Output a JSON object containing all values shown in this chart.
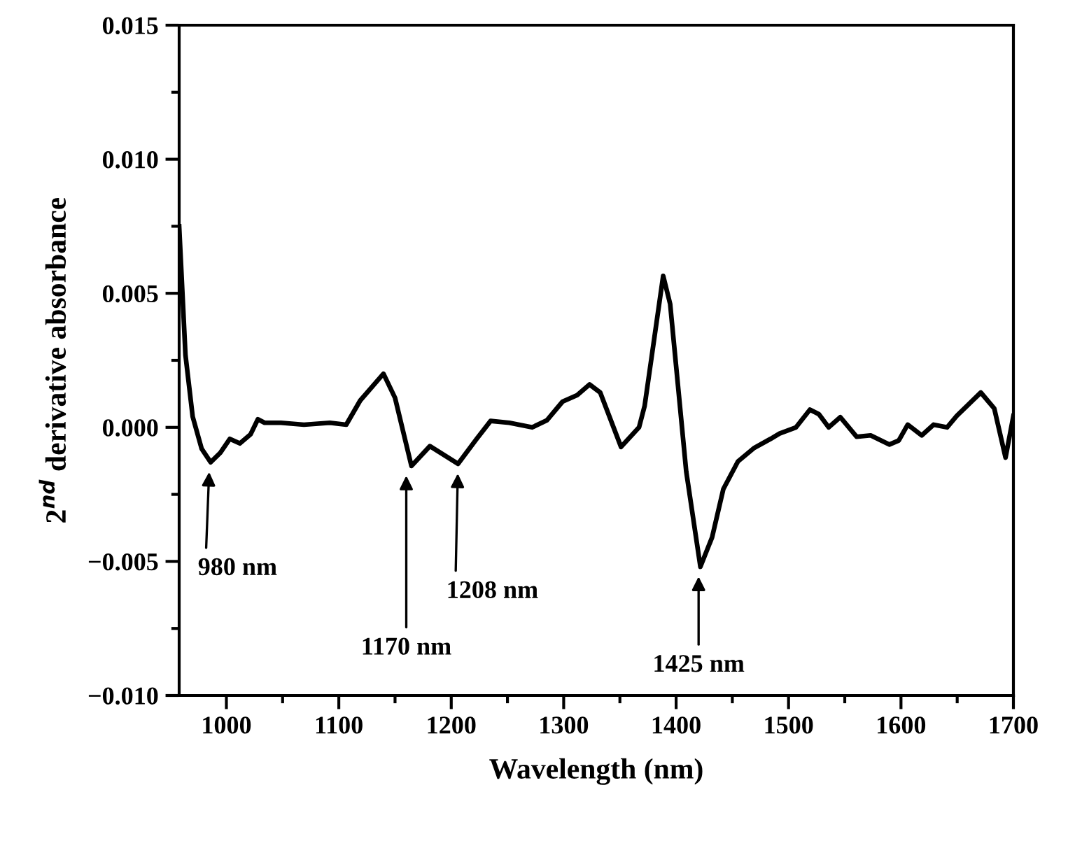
{
  "chart_data": {
    "type": "line",
    "xlabel": "Wavelength (nm)",
    "ylabel": "2$^{nd}$ derivative absorbance",
    "x": [
      958,
      963.6,
      970,
      978,
      986,
      994.6,
      1003,
      1012,
      1021.5,
      1028,
      1034,
      1048.5,
      1069,
      1092,
      1106.6,
      1119,
      1139.7,
      1150,
      1164.6,
      1181,
      1206,
      1222.6,
      1235,
      1251.6,
      1272,
      1285,
      1299,
      1312,
      1323,
      1332.5,
      1351,
      1367,
      1372,
      1388.5,
      1394.7,
      1409,
      1421.6,
      1432,
      1442,
      1455,
      1469,
      1484,
      1492,
      1506.6,
      1519,
      1527,
      1535.7,
      1546,
      1560.5,
      1573,
      1589.6,
      1598,
      1606,
      1618.5,
      1629,
      1641,
      1649.6,
      1671,
      1683,
      1693,
      1700
    ],
    "series": [
      {
        "color": "#000000",
        "values": [
          0.0075,
          0.0027,
          0.0004,
          -0.0008,
          -0.0013,
          -0.00095,
          -0.00043,
          -0.0006,
          -0.00026,
          0.0003,
          0.00017,
          0.00017,
          0.0001,
          0.00017,
          0.0001,
          0.001,
          0.002,
          0.0011,
          -0.00144,
          -0.0007,
          -0.00136,
          -0.00043,
          0.00024,
          0.00017,
          0.0,
          0.00026,
          0.00096,
          0.0012,
          0.0016,
          0.0013,
          -0.00073,
          0.0,
          0.0008,
          0.00565,
          0.0046,
          -0.00165,
          -0.0052,
          -0.0041,
          -0.0023,
          -0.00127,
          -0.00078,
          -0.00043,
          -0.00023,
          0.0,
          0.00066,
          0.00049,
          0.0,
          0.00038,
          -0.00035,
          -0.0003,
          -0.00064,
          -0.00049,
          0.0001,
          -0.0003,
          0.0001,
          0.0,
          0.00043,
          0.0013,
          0.0007,
          -0.00113,
          0.00043
        ]
      }
    ],
    "xlim": [
      958,
      1700
    ],
    "ylim": [
      -0.01,
      0.015
    ],
    "xticks": [
      1000,
      {
        "value": 1050,
        "label": null
      },
      1100,
      {
        "value": 1150,
        "label": null
      },
      1200,
      {
        "value": 1250,
        "label": null
      },
      1300,
      {
        "value": 1350,
        "label": null
      },
      1400,
      {
        "value": 1450,
        "label": null
      },
      1500,
      {
        "value": 1550,
        "label": null
      },
      1600,
      {
        "value": 1650,
        "label": null
      },
      1700
    ],
    "yticks": [
      {
        "value": -0.01,
        "label": "−0.010"
      },
      {
        "value": -0.0075,
        "label": null
      },
      {
        "value": -0.005,
        "label": "−0.005"
      },
      {
        "value": -0.0025,
        "label": null
      },
      {
        "value": 0,
        "label": "0.000"
      },
      {
        "value": 0.0025,
        "label": null
      },
      {
        "value": 0.005,
        "label": "0.005"
      },
      {
        "value": 0.0075,
        "label": null
      },
      {
        "value": 0.01,
        "label": "0.010"
      },
      {
        "value": 0.0125,
        "label": null
      },
      {
        "value": 0.015,
        "label": "0.015"
      }
    ],
    "grid": false,
    "legend": false,
    "marker": "none",
    "line_style": "solid",
    "annotations": [
      {
        "text": "980 nm",
        "x": 985,
        "y": -0.0013
      },
      {
        "text": "1170 nm",
        "x": 1160,
        "y": -0.00144
      },
      {
        "text": "1208 nm",
        "x": 1206,
        "y": -0.00136
      },
      {
        "text": "1425 nm",
        "x": 1420,
        "y": -0.0052
      }
    ]
  }
}
